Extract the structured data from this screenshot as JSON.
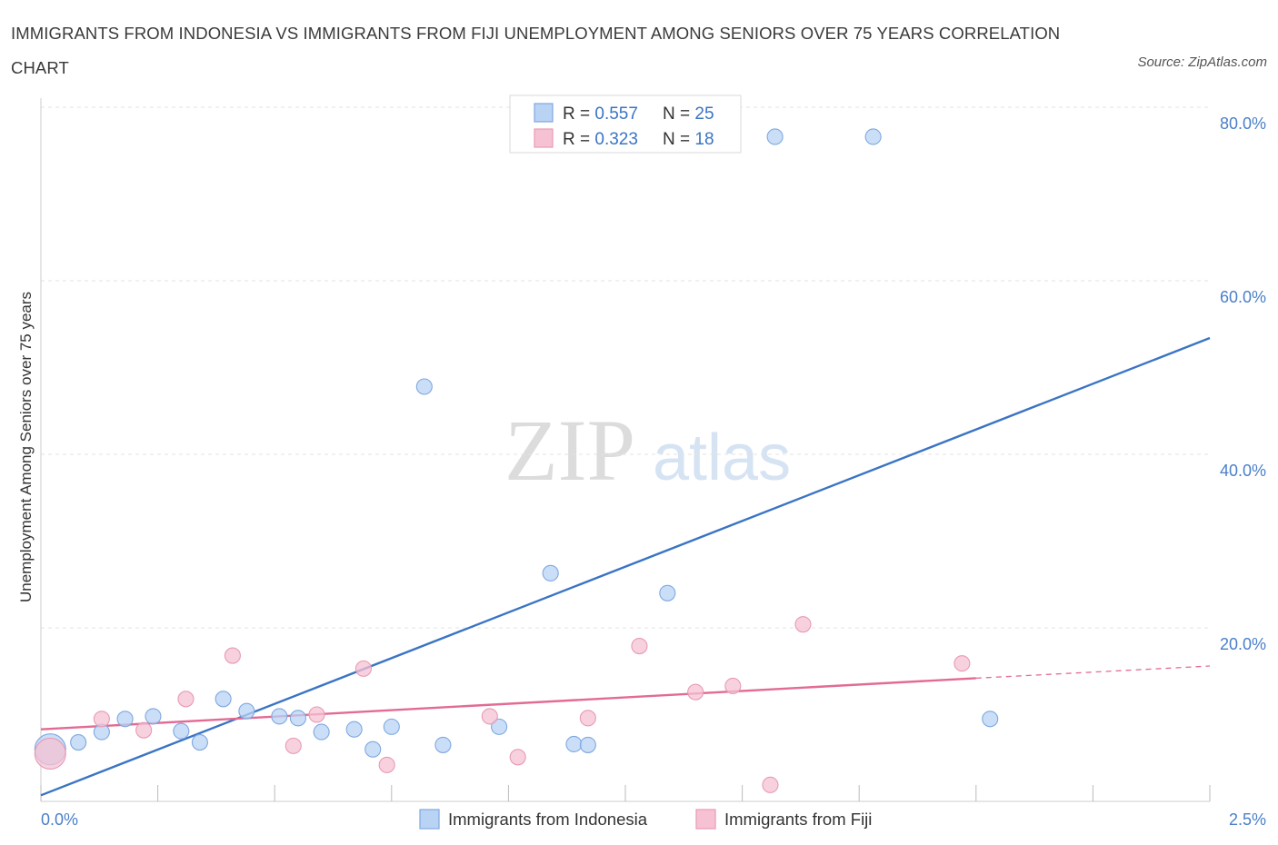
{
  "title": "IMMIGRANTS FROM INDONESIA VS IMMIGRANTS FROM FIJI UNEMPLOYMENT AMONG SENIORS OVER 75 YEARS CORRELATION CHART",
  "source": "Source: ZipAtlas.com",
  "watermark": {
    "zip": "ZIP",
    "atlas": "atlas"
  },
  "colors": {
    "indonesia": "#3a74c4",
    "indonesia_fill": "#b9d3f4",
    "fiji": "#e26b94",
    "fiji_fill": "#f6c2d3",
    "axis_text": "#4a7fc9"
  },
  "legend": {
    "rows": [
      {
        "r_label": "R = ",
        "r_value": "0.557",
        "n_label": "N = ",
        "n_value": "25"
      },
      {
        "r_label": "R = ",
        "r_value": "0.323",
        "n_label": "N = ",
        "n_value": "18"
      }
    ]
  },
  "chart_data": {
    "type": "scatter",
    "title": "IMMIGRANTS FROM INDONESIA VS IMMIGRANTS FROM FIJI UNEMPLOYMENT AMONG SENIORS OVER 75 YEARS CORRELATION CHART",
    "xlabel": "",
    "ylabel": "Unemployment Among Seniors over 75 years",
    "xlim": [
      0,
      2.5
    ],
    "ylim": [
      0,
      80
    ],
    "x_tick_labels": [
      "0.0%",
      "2.5%"
    ],
    "y_ticks": [
      20,
      40,
      60,
      80
    ],
    "y_tick_labels": [
      "20.0%",
      "40.0%",
      "60.0%",
      "80.0%"
    ],
    "grid": true,
    "legend_position": "top-center",
    "series": [
      {
        "name": "Immigrants from Indonesia",
        "r": 0.557,
        "n": 25,
        "trend": {
          "x": [
            0.0,
            2.5
          ],
          "y": [
            0.7,
            53.4
          ]
        },
        "points": [
          {
            "x": 0.02,
            "y": 6.0,
            "big": true
          },
          {
            "x": 0.08,
            "y": 6.8
          },
          {
            "x": 0.13,
            "y": 8.0
          },
          {
            "x": 0.18,
            "y": 9.5
          },
          {
            "x": 0.24,
            "y": 9.8
          },
          {
            "x": 0.3,
            "y": 8.1
          },
          {
            "x": 0.34,
            "y": 6.8
          },
          {
            "x": 0.39,
            "y": 11.8
          },
          {
            "x": 0.44,
            "y": 10.4
          },
          {
            "x": 0.51,
            "y": 9.8
          },
          {
            "x": 0.55,
            "y": 9.6
          },
          {
            "x": 0.6,
            "y": 8.0
          },
          {
            "x": 0.67,
            "y": 8.3
          },
          {
            "x": 0.71,
            "y": 6.0
          },
          {
            "x": 0.75,
            "y": 8.6
          },
          {
            "x": 0.82,
            "y": 47.8
          },
          {
            "x": 0.86,
            "y": 6.5
          },
          {
            "x": 0.98,
            "y": 8.6
          },
          {
            "x": 1.09,
            "y": 26.3
          },
          {
            "x": 1.14,
            "y": 6.6
          },
          {
            "x": 1.17,
            "y": 6.5
          },
          {
            "x": 1.34,
            "y": 24.0
          },
          {
            "x": 1.57,
            "y": 76.6
          },
          {
            "x": 1.78,
            "y": 76.6
          },
          {
            "x": 2.03,
            "y": 9.5
          }
        ]
      },
      {
        "name": "Immigrants from Fiji",
        "r": 0.323,
        "n": 18,
        "trend": {
          "x": [
            0.0,
            2.0
          ],
          "y": [
            8.3,
            14.2
          ]
        },
        "trend_dashed": {
          "x": [
            2.0,
            2.5
          ],
          "y": [
            14.2,
            15.6
          ]
        },
        "points": [
          {
            "x": 0.02,
            "y": 5.5,
            "big": true
          },
          {
            "x": 0.13,
            "y": 9.5
          },
          {
            "x": 0.22,
            "y": 8.2
          },
          {
            "x": 0.31,
            "y": 11.8
          },
          {
            "x": 0.41,
            "y": 16.8
          },
          {
            "x": 0.54,
            "y": 6.4
          },
          {
            "x": 0.59,
            "y": 10.0
          },
          {
            "x": 0.69,
            "y": 15.3
          },
          {
            "x": 0.74,
            "y": 4.2
          },
          {
            "x": 0.96,
            "y": 9.8
          },
          {
            "x": 1.02,
            "y": 5.1
          },
          {
            "x": 1.17,
            "y": 9.6
          },
          {
            "x": 1.28,
            "y": 17.9
          },
          {
            "x": 1.4,
            "y": 12.6
          },
          {
            "x": 1.48,
            "y": 13.3
          },
          {
            "x": 1.56,
            "y": 1.9
          },
          {
            "x": 1.63,
            "y": 20.4
          },
          {
            "x": 1.97,
            "y": 15.9
          }
        ]
      }
    ]
  }
}
